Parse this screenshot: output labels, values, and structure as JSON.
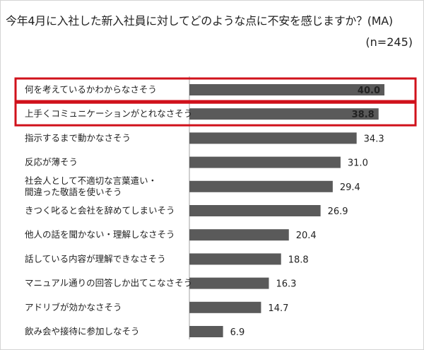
{
  "title": "今年4月に入社した新入社員に対してどのような点に不安を感じますか？(MA)",
  "sample": "(n=245)",
  "colors": {
    "bar": "#5a5a5a",
    "highlight": "#d0111b",
    "axis": "#a0a0a0"
  },
  "chart_data": {
    "type": "bar",
    "orientation": "horizontal",
    "title": "今年4月に入社した新入社員に対してどのような点に不安を感じますか？(MA)",
    "categories": [
      "何を考えているかわからなさそう",
      "上手くコミュニケーションがとれなさそう",
      "指示するまで動かなさそう",
      "反応が薄そう",
      "社会人として不適切な言葉遣い・\n間違った敬語を使いそう",
      "きつく叱ると会社を辞めてしまいそう",
      "他人の話を聞かない・理解しなさそう",
      "話している内容が理解できなさそう",
      "マニュアル通りの回答しか出てこなさそう",
      "アドリブが効かなさそう",
      "飲み会や接待に参加しなそう"
    ],
    "values": [
      40.0,
      38.8,
      34.3,
      31.0,
      29.4,
      26.9,
      20.4,
      18.8,
      16.3,
      14.7,
      6.9
    ],
    "value_labels": [
      "40.0",
      "38.8",
      "34.3",
      "31.0",
      "29.4",
      "26.9",
      "20.4",
      "18.8",
      "16.3",
      "14.7",
      "6.9"
    ],
    "highlighted": [
      0,
      1
    ],
    "xlim": [
      0,
      40
    ],
    "grid": false,
    "legend": "none"
  }
}
